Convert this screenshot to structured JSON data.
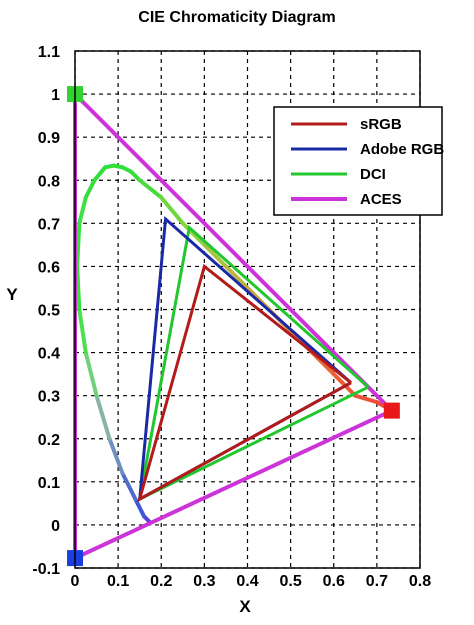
{
  "chart_data": {
    "type": "line",
    "title": "CIE Chromaticity Diagram",
    "xlabel": "X",
    "ylabel": "Y",
    "xlim": [
      0,
      0.8
    ],
    "ylim": [
      -0.1,
      1.1
    ],
    "xticks": [
      "0",
      "0.1",
      "0.2",
      "0.3",
      "0.4",
      "0.5",
      "0.6",
      "0.7",
      "0.8"
    ],
    "yticks": [
      "1.1",
      "1",
      "0.9",
      "0.8",
      "0.7",
      "0.6",
      "0.5",
      "0.4",
      "0.3",
      "0.2",
      "0.1",
      "0",
      "-0.1"
    ],
    "grid": true,
    "legend_position": "top-right",
    "spectral_locus": {
      "x": [
        0.175,
        0.17,
        0.16,
        0.14,
        0.11,
        0.08,
        0.05,
        0.025,
        0.01,
        0.005,
        0.01,
        0.025,
        0.045,
        0.07,
        0.09,
        0.11,
        0.13,
        0.15,
        0.2,
        0.25,
        0.3,
        0.35,
        0.4,
        0.45,
        0.5,
        0.55,
        0.6,
        0.65,
        0.7,
        0.735
      ],
      "y": [
        0.005,
        0.01,
        0.02,
        0.06,
        0.12,
        0.2,
        0.3,
        0.4,
        0.5,
        0.6,
        0.7,
        0.76,
        0.8,
        0.83,
        0.834,
        0.83,
        0.82,
        0.8,
        0.76,
        0.7,
        0.65,
        0.6,
        0.55,
        0.5,
        0.45,
        0.4,
        0.35,
        0.3,
        0.285,
        0.265
      ],
      "colors": [
        "#7a2fd0",
        "#5a3fd8",
        "#3f58d6",
        "#4f6cc8",
        "#6f8fbf",
        "#88b4a0",
        "#6fd27a",
        "#4be04f",
        "#35e03d",
        "#35e03d",
        "#3be043",
        "#35de3e",
        "#2fe03a",
        "#2fe03a",
        "#2fe03a",
        "#2fe03a",
        "#37dd3b",
        "#4cd93e",
        "#6fd63f",
        "#8dd040",
        "#a6c43f",
        "#bcb63e",
        "#cca53c",
        "#d7933a",
        "#e07b38",
        "#e76836",
        "#ec5a36",
        "#ef5036",
        "#f24838",
        "#f44438"
      ]
    },
    "series": [
      {
        "name": "sRGB",
        "color": "#b31b1b",
        "x": [
          0.64,
          0.3,
          0.15,
          0.64
        ],
        "y": [
          0.33,
          0.6,
          0.06,
          0.33
        ]
      },
      {
        "name": "Adobe RGB",
        "color": "#1a2aa6",
        "x": [
          0.64,
          0.21,
          0.15,
          0.64
        ],
        "y": [
          0.33,
          0.71,
          0.06,
          0.33
        ]
      },
      {
        "name": "DCI",
        "color": "#22c62e",
        "x": [
          0.68,
          0.265,
          0.15,
          0.68
        ],
        "y": [
          0.32,
          0.69,
          0.06,
          0.32
        ]
      },
      {
        "name": "ACES",
        "color": "#cc33d9",
        "x": [
          0.7347,
          0.0,
          0.0001,
          0.7347
        ],
        "y": [
          0.2653,
          1.0,
          -0.077,
          0.2653
        ]
      }
    ],
    "primary_markers": [
      {
        "x": 0.0,
        "y": 1.0,
        "color": "#33d233"
      },
      {
        "x": 0.7347,
        "y": 0.2653,
        "color": "#e81818"
      },
      {
        "x": 0.0001,
        "y": -0.077,
        "color": "#1a3fe0"
      }
    ]
  }
}
